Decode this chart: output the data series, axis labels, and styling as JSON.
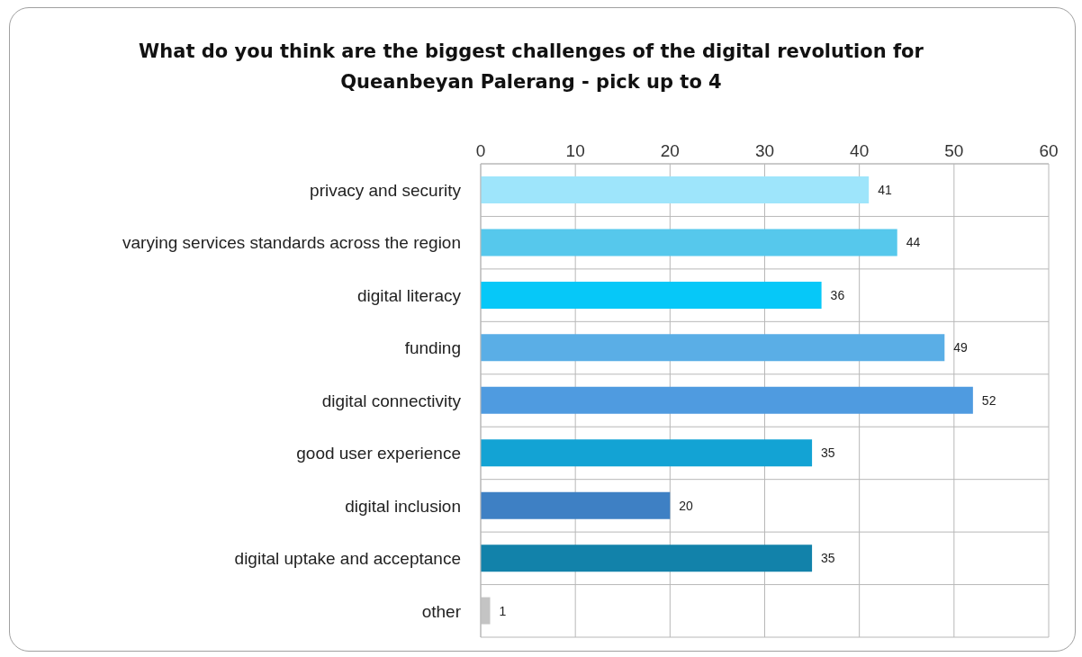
{
  "chart_data": {
    "type": "bar",
    "orientation": "horizontal",
    "title": "What do you think are the biggest challenges of the digital revolution for Queanbeyan Palerang - pick up to 4",
    "categories": [
      "privacy and security",
      "varying services standards across the region",
      "digital literacy",
      "funding",
      "digital connectivity",
      "good user experience",
      "digital inclusion",
      "digital uptake and acceptance",
      "other"
    ],
    "values": [
      41,
      44,
      36,
      49,
      52,
      35,
      20,
      35,
      1
    ],
    "colors": [
      "#9ee5fb",
      "#56c8ec",
      "#06c8f8",
      "#5aaee6",
      "#4f9be0",
      "#13a3d4",
      "#3e80c4",
      "#1282aa",
      "#c4c4c4"
    ],
    "xlim": [
      0,
      60
    ],
    "xticks": [
      0,
      10,
      20,
      30,
      40,
      50,
      60
    ],
    "grid": true,
    "data_labels": true
  }
}
